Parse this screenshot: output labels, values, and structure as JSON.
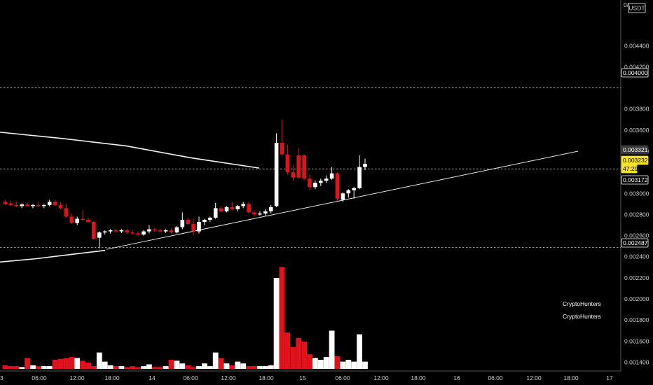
{
  "chart_data": {
    "type": "candlestick",
    "quote_unit": "USDT",
    "ylim": [
      0.00137,
      0.00478
    ],
    "y_ticks": [
      "0.004400",
      "0.004200",
      "0.003800",
      "0.003600",
      "0.003400",
      "0.003000",
      "0.002800",
      "0.002600",
      "0.002400",
      "0.002200",
      "0.002000",
      "0.001800",
      "0.001600",
      "0.001400"
    ],
    "x_ticks": [
      "3",
      "06:00",
      "12:00",
      "18:00",
      "14",
      "06:00",
      "12:00",
      "18:00",
      "15",
      "06:00",
      "12:00",
      "18:00",
      "16",
      "06:00",
      "12:00",
      "18:00",
      "17"
    ],
    "price_labels": [
      {
        "value": "0.004000",
        "style": "dark"
      },
      {
        "value": "0.003321",
        "style": "grey"
      },
      {
        "value": "0.003232",
        "style": "yellow"
      },
      {
        "value": "47:29",
        "style": "yellow"
      },
      {
        "value": "0.003172",
        "style": "dark"
      },
      {
        "value": "0.002487",
        "style": "dark"
      }
    ],
    "horizontal_levels": [
      0.004,
      0.003232,
      0.002487
    ],
    "candles": [
      {
        "o": 0.00292,
        "h": 0.00294,
        "l": 0.00289,
        "c": 0.0029,
        "up": false
      },
      {
        "o": 0.002905,
        "h": 0.00293,
        "l": 0.00288,
        "c": 0.00289,
        "up": false
      },
      {
        "o": 0.00289,
        "h": 0.00292,
        "l": 0.00287,
        "c": 0.00288,
        "up": false
      },
      {
        "o": 0.00288,
        "h": 0.002905,
        "l": 0.00286,
        "c": 0.002895,
        "up": true
      },
      {
        "o": 0.002895,
        "h": 0.00291,
        "l": 0.00287,
        "c": 0.00288,
        "up": false
      },
      {
        "o": 0.00288,
        "h": 0.0029,
        "l": 0.00286,
        "c": 0.00289,
        "up": true
      },
      {
        "o": 0.00289,
        "h": 0.002915,
        "l": 0.00287,
        "c": 0.00288,
        "up": false
      },
      {
        "o": 0.00288,
        "h": 0.0029,
        "l": 0.00286,
        "c": 0.00289,
        "up": true
      },
      {
        "o": 0.00289,
        "h": 0.00294,
        "l": 0.00288,
        "c": 0.00292,
        "up": true
      },
      {
        "o": 0.00292,
        "h": 0.00294,
        "l": 0.00288,
        "c": 0.00289,
        "up": false
      },
      {
        "o": 0.00289,
        "h": 0.00292,
        "l": 0.00285,
        "c": 0.00286,
        "up": false
      },
      {
        "o": 0.00286,
        "h": 0.0029,
        "l": 0.00277,
        "c": 0.00278,
        "up": false
      },
      {
        "o": 0.00278,
        "h": 0.00281,
        "l": 0.00271,
        "c": 0.00272,
        "up": false
      },
      {
        "o": 0.00272,
        "h": 0.00278,
        "l": 0.0027,
        "c": 0.00276,
        "up": true
      },
      {
        "o": 0.00276,
        "h": 0.00284,
        "l": 0.00274,
        "c": 0.00275,
        "up": false
      },
      {
        "o": 0.00275,
        "h": 0.00277,
        "l": 0.00272,
        "c": 0.00273,
        "up": false
      },
      {
        "o": 0.00273,
        "h": 0.00274,
        "l": 0.00256,
        "c": 0.00257,
        "up": false
      },
      {
        "o": 0.00258,
        "h": 0.00264,
        "l": 0.00248,
        "c": 0.00263,
        "up": true
      },
      {
        "o": 0.00263,
        "h": 0.00265,
        "l": 0.00261,
        "c": 0.00264,
        "up": true
      },
      {
        "o": 0.00264,
        "h": 0.00266,
        "l": 0.00262,
        "c": 0.00265,
        "up": true
      },
      {
        "o": 0.00265,
        "h": 0.002665,
        "l": 0.00263,
        "c": 0.00264,
        "up": false
      },
      {
        "o": 0.00264,
        "h": 0.00266,
        "l": 0.002625,
        "c": 0.00265,
        "up": true
      },
      {
        "o": 0.00265,
        "h": 0.002665,
        "l": 0.00262,
        "c": 0.00263,
        "up": false
      },
      {
        "o": 0.00263,
        "h": 0.00265,
        "l": 0.00261,
        "c": 0.00262,
        "up": false
      },
      {
        "o": 0.00262,
        "h": 0.00264,
        "l": 0.002595,
        "c": 0.00261,
        "up": false
      },
      {
        "o": 0.00261,
        "h": 0.00265,
        "l": 0.0026,
        "c": 0.00264,
        "up": true
      },
      {
        "o": 0.00264,
        "h": 0.0027,
        "l": 0.00262,
        "c": 0.00266,
        "up": true
      },
      {
        "o": 0.00266,
        "h": 0.002675,
        "l": 0.002635,
        "c": 0.00265,
        "up": false
      },
      {
        "o": 0.00265,
        "h": 0.002665,
        "l": 0.00263,
        "c": 0.00264,
        "up": false
      },
      {
        "o": 0.00264,
        "h": 0.00266,
        "l": 0.002625,
        "c": 0.00265,
        "up": true
      },
      {
        "o": 0.00265,
        "h": 0.00267,
        "l": 0.00262,
        "c": 0.00263,
        "up": false
      },
      {
        "o": 0.00263,
        "h": 0.00269,
        "l": 0.00262,
        "c": 0.00268,
        "up": true
      },
      {
        "o": 0.00268,
        "h": 0.00282,
        "l": 0.00266,
        "c": 0.00275,
        "up": true
      },
      {
        "o": 0.00275,
        "h": 0.00277,
        "l": 0.0027,
        "c": 0.00271,
        "up": false
      },
      {
        "o": 0.00271,
        "h": 0.00276,
        "l": 0.0026,
        "c": 0.00264,
        "up": false
      },
      {
        "o": 0.00264,
        "h": 0.00278,
        "l": 0.00262,
        "c": 0.00273,
        "up": true
      },
      {
        "o": 0.00273,
        "h": 0.00276,
        "l": 0.0027,
        "c": 0.00275,
        "up": true
      },
      {
        "o": 0.00275,
        "h": 0.00278,
        "l": 0.00273,
        "c": 0.00277,
        "up": true
      },
      {
        "o": 0.00277,
        "h": 0.00291,
        "l": 0.00276,
        "c": 0.00286,
        "up": true
      },
      {
        "o": 0.00286,
        "h": 0.00288,
        "l": 0.00282,
        "c": 0.00283,
        "up": false
      },
      {
        "o": 0.00283,
        "h": 0.00288,
        "l": 0.00282,
        "c": 0.00287,
        "up": true
      },
      {
        "o": 0.00287,
        "h": 0.00292,
        "l": 0.00284,
        "c": 0.00285,
        "up": false
      },
      {
        "o": 0.00285,
        "h": 0.00289,
        "l": 0.00283,
        "c": 0.00288,
        "up": true
      },
      {
        "o": 0.00288,
        "h": 0.00292,
        "l": 0.00286,
        "c": 0.0029,
        "up": true
      },
      {
        "o": 0.0029,
        "h": 0.00292,
        "l": 0.00281,
        "c": 0.00282,
        "up": false
      },
      {
        "o": 0.00282,
        "h": 0.00284,
        "l": 0.00278,
        "c": 0.0028,
        "up": false
      },
      {
        "o": 0.0028,
        "h": 0.00283,
        "l": 0.00279,
        "c": 0.00281,
        "up": true
      },
      {
        "o": 0.00281,
        "h": 0.00285,
        "l": 0.00279,
        "c": 0.00283,
        "up": true
      },
      {
        "o": 0.00283,
        "h": 0.00289,
        "l": 0.00281,
        "c": 0.00287,
        "up": true
      },
      {
        "o": 0.00288,
        "h": 0.00357,
        "l": 0.00287,
        "c": 0.00348,
        "up": true
      },
      {
        "o": 0.00348,
        "h": 0.0037,
        "l": 0.00336,
        "c": 0.00337,
        "up": false
      },
      {
        "o": 0.00337,
        "h": 0.00346,
        "l": 0.00318,
        "c": 0.0032,
        "up": false
      },
      {
        "o": 0.0032,
        "h": 0.00327,
        "l": 0.00312,
        "c": 0.00315,
        "up": false
      },
      {
        "o": 0.00315,
        "h": 0.00343,
        "l": 0.00314,
        "c": 0.00336,
        "up": false
      },
      {
        "o": 0.00336,
        "h": 0.00337,
        "l": 0.00312,
        "c": 0.00314,
        "up": false
      },
      {
        "o": 0.00314,
        "h": 0.00318,
        "l": 0.00303,
        "c": 0.00306,
        "up": false
      },
      {
        "o": 0.00306,
        "h": 0.00312,
        "l": 0.00304,
        "c": 0.0031,
        "up": true
      },
      {
        "o": 0.0031,
        "h": 0.00314,
        "l": 0.00307,
        "c": 0.00312,
        "up": true
      },
      {
        "o": 0.00312,
        "h": 0.00317,
        "l": 0.0031,
        "c": 0.00314,
        "up": true
      },
      {
        "o": 0.00314,
        "h": 0.00325,
        "l": 0.00313,
        "c": 0.00319,
        "up": true
      },
      {
        "o": 0.00319,
        "h": 0.0032,
        "l": 0.00293,
        "c": 0.00295,
        "up": false
      },
      {
        "o": 0.00294,
        "h": 0.00301,
        "l": 0.00292,
        "c": 0.003,
        "up": true
      },
      {
        "o": 0.003,
        "h": 0.00304,
        "l": 0.00296,
        "c": 0.00303,
        "up": true
      },
      {
        "o": 0.00303,
        "h": 0.00306,
        "l": 0.00295,
        "c": 0.00305,
        "up": true
      },
      {
        "o": 0.00305,
        "h": 0.00336,
        "l": 0.00304,
        "c": 0.00325,
        "up": true
      },
      {
        "o": 0.00325,
        "h": 0.00333,
        "l": 0.00322,
        "c": 0.00328,
        "up": true
      }
    ],
    "volume": [
      4,
      3,
      3,
      2,
      12,
      4,
      3,
      3,
      3,
      10,
      11,
      12,
      13,
      12,
      9,
      7,
      3,
      18,
      8,
      4,
      3,
      3,
      2,
      3,
      2,
      3,
      5,
      2,
      2,
      3,
      10,
      9,
      6,
      4,
      2,
      3,
      6,
      3,
      18,
      12,
      6,
      4,
      8,
      6,
      3,
      3,
      3,
      3,
      4,
      100,
      112,
      40,
      24,
      34,
      30,
      16,
      12,
      10,
      13,
      42,
      14,
      8,
      10,
      8,
      38,
      8
    ],
    "moving_average_line": [
      [
        0.0,
        0.00358
      ],
      [
        90.0,
        0.00352
      ],
      [
        180.0,
        0.00345
      ],
      [
        270.0,
        0.00334
      ],
      [
        370.0,
        0.00324
      ]
    ],
    "lower_curve": [
      [
        0.0,
        0.00235
      ],
      [
        50.0,
        0.00238
      ],
      [
        100.0,
        0.00242
      ],
      [
        150.0,
        0.00246
      ]
    ],
    "trendline": [
      [
        152.0,
        0.00247
      ],
      [
        825.0,
        0.0034
      ]
    ]
  },
  "watermarks": [
    "CryptoHunters",
    "CryptoHunters"
  ],
  "colors": {
    "up": "#ffffff",
    "down": "#e0121b",
    "background": "#000000",
    "axis_text": "#cfcfcf",
    "current_price_bg": "#f5e22a",
    "label_grey_bg": "#3a3a3a"
  }
}
